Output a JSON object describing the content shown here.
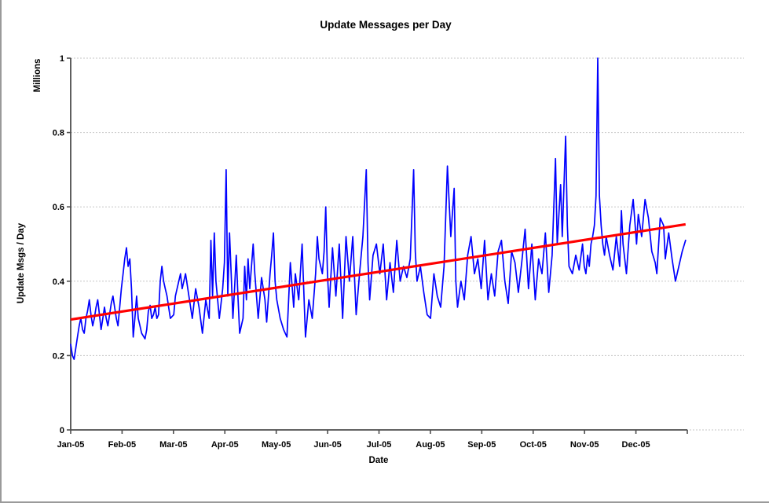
{
  "chart_data": {
    "type": "line",
    "title": "Update Messages per Day",
    "xlabel": "Date",
    "ylabel": "Update Msgs / Day",
    "y_units_label": "Millions",
    "x_tick_labels": [
      "Jan-05",
      "Feb-05",
      "Mar-05",
      "Apr-05",
      "May-05",
      "Jun-05",
      "Jul-05",
      "Aug-05",
      "Sep-05",
      "Oct-05",
      "Nov-05",
      "Dec-05"
    ],
    "y_tick_labels": [
      "0",
      "0.2",
      "0.4",
      "0.6",
      "0.8",
      "1"
    ],
    "y_ticks": [
      0,
      0.2,
      0.4,
      0.6,
      0.8,
      1
    ],
    "ylim": [
      0,
      1
    ],
    "x_days_range": [
      1,
      365
    ],
    "grid": "horizontal-dashed",
    "legend_position": "none",
    "colors": {
      "daily_series": "#0000ff",
      "trend_line": "#ff0000",
      "gridline": "#c6c6c6",
      "axis": "#4d4d4d",
      "background": "#ffffff",
      "frame_edge": "#9a9a9a"
    },
    "series": [
      {
        "name": "daily-update-messages-millions",
        "color": "#0000ff",
        "points": [
          [
            1,
            0.23
          ],
          [
            2,
            0.2
          ],
          [
            3,
            0.19
          ],
          [
            4,
            0.22
          ],
          [
            5,
            0.25
          ],
          [
            6,
            0.28
          ],
          [
            7,
            0.3
          ],
          [
            8,
            0.27
          ],
          [
            9,
            0.26
          ],
          [
            10,
            0.3
          ],
          [
            11,
            0.32
          ],
          [
            12,
            0.35
          ],
          [
            13,
            0.31
          ],
          [
            14,
            0.28
          ],
          [
            15,
            0.3
          ],
          [
            16,
            0.33
          ],
          [
            17,
            0.35
          ],
          [
            18,
            0.31
          ],
          [
            19,
            0.27
          ],
          [
            20,
            0.3
          ],
          [
            21,
            0.33
          ],
          [
            22,
            0.3
          ],
          [
            23,
            0.28
          ],
          [
            24,
            0.31
          ],
          [
            25,
            0.34
          ],
          [
            26,
            0.36
          ],
          [
            27,
            0.33
          ],
          [
            28,
            0.3
          ],
          [
            29,
            0.28
          ],
          [
            30,
            0.33
          ],
          [
            31,
            0.38
          ],
          [
            32,
            0.42
          ],
          [
            33,
            0.46
          ],
          [
            34,
            0.49
          ],
          [
            35,
            0.44
          ],
          [
            36,
            0.46
          ],
          [
            37,
            0.38
          ],
          [
            38,
            0.25
          ],
          [
            39,
            0.3
          ],
          [
            40,
            0.36
          ],
          [
            41,
            0.3
          ],
          [
            42,
            0.28
          ],
          [
            43,
            0.26
          ],
          [
            45,
            0.245
          ],
          [
            46,
            0.27
          ],
          [
            47,
            0.32
          ],
          [
            48,
            0.335
          ],
          [
            49,
            0.3
          ],
          [
            50,
            0.31
          ],
          [
            51,
            0.33
          ],
          [
            52,
            0.3
          ],
          [
            53,
            0.31
          ],
          [
            54,
            0.4
          ],
          [
            55,
            0.44
          ],
          [
            56,
            0.4
          ],
          [
            57,
            0.38
          ],
          [
            58,
            0.36
          ],
          [
            59,
            0.33
          ],
          [
            60,
            0.3
          ],
          [
            62,
            0.31
          ],
          [
            63,
            0.36
          ],
          [
            65,
            0.4
          ],
          [
            66,
            0.42
          ],
          [
            67,
            0.38
          ],
          [
            69,
            0.42
          ],
          [
            71,
            0.36
          ],
          [
            73,
            0.3
          ],
          [
            75,
            0.38
          ],
          [
            77,
            0.33
          ],
          [
            79,
            0.26
          ],
          [
            81,
            0.35
          ],
          [
            83,
            0.3
          ],
          [
            84,
            0.51
          ],
          [
            85,
            0.36
          ],
          [
            86,
            0.53
          ],
          [
            87,
            0.4
          ],
          [
            88,
            0.35
          ],
          [
            89,
            0.3
          ],
          [
            90,
            0.34
          ],
          [
            91,
            0.38
          ],
          [
            92,
            0.45
          ],
          [
            93,
            0.7
          ],
          [
            94,
            0.36
          ],
          [
            95,
            0.53
          ],
          [
            96,
            0.42
          ],
          [
            97,
            0.3
          ],
          [
            98,
            0.38
          ],
          [
            99,
            0.47
          ],
          [
            100,
            0.36
          ],
          [
            101,
            0.26
          ],
          [
            103,
            0.3
          ],
          [
            104,
            0.44
          ],
          [
            105,
            0.35
          ],
          [
            106,
            0.46
          ],
          [
            107,
            0.38
          ],
          [
            109,
            0.5
          ],
          [
            110,
            0.42
          ],
          [
            112,
            0.3
          ],
          [
            114,
            0.41
          ],
          [
            116,
            0.35
          ],
          [
            117,
            0.29
          ],
          [
            119,
            0.42
          ],
          [
            120,
            0.47
          ],
          [
            121,
            0.53
          ],
          [
            122,
            0.4
          ],
          [
            123,
            0.35
          ],
          [
            125,
            0.3
          ],
          [
            127,
            0.27
          ],
          [
            129,
            0.25
          ],
          [
            131,
            0.45
          ],
          [
            133,
            0.33
          ],
          [
            134,
            0.42
          ],
          [
            136,
            0.35
          ],
          [
            138,
            0.5
          ],
          [
            140,
            0.25
          ],
          [
            142,
            0.35
          ],
          [
            144,
            0.3
          ],
          [
            146,
            0.42
          ],
          [
            147,
            0.52
          ],
          [
            148,
            0.46
          ],
          [
            150,
            0.42
          ],
          [
            151,
            0.48
          ],
          [
            152,
            0.6
          ],
          [
            153,
            0.42
          ],
          [
            154,
            0.33
          ],
          [
            156,
            0.49
          ],
          [
            158,
            0.36
          ],
          [
            160,
            0.5
          ],
          [
            162,
            0.3
          ],
          [
            164,
            0.52
          ],
          [
            166,
            0.4
          ],
          [
            168,
            0.52
          ],
          [
            170,
            0.31
          ],
          [
            172,
            0.42
          ],
          [
            174,
            0.52
          ],
          [
            176,
            0.7
          ],
          [
            177,
            0.45
          ],
          [
            178,
            0.35
          ],
          [
            180,
            0.47
          ],
          [
            182,
            0.5
          ],
          [
            184,
            0.42
          ],
          [
            186,
            0.5
          ],
          [
            188,
            0.35
          ],
          [
            190,
            0.45
          ],
          [
            192,
            0.37
          ],
          [
            194,
            0.51
          ],
          [
            196,
            0.4
          ],
          [
            198,
            0.44
          ],
          [
            200,
            0.41
          ],
          [
            202,
            0.46
          ],
          [
            204,
            0.7
          ],
          [
            205,
            0.48
          ],
          [
            206,
            0.4
          ],
          [
            208,
            0.44
          ],
          [
            210,
            0.37
          ],
          [
            212,
            0.31
          ],
          [
            214,
            0.3
          ],
          [
            216,
            0.42
          ],
          [
            218,
            0.36
          ],
          [
            220,
            0.33
          ],
          [
            222,
            0.44
          ],
          [
            224,
            0.71
          ],
          [
            226,
            0.52
          ],
          [
            228,
            0.65
          ],
          [
            229,
            0.4
          ],
          [
            230,
            0.33
          ],
          [
            232,
            0.4
          ],
          [
            234,
            0.35
          ],
          [
            236,
            0.47
          ],
          [
            238,
            0.52
          ],
          [
            240,
            0.42
          ],
          [
            242,
            0.46
          ],
          [
            244,
            0.38
          ],
          [
            246,
            0.51
          ],
          [
            248,
            0.35
          ],
          [
            250,
            0.42
          ],
          [
            252,
            0.36
          ],
          [
            254,
            0.48
          ],
          [
            256,
            0.51
          ],
          [
            258,
            0.4
          ],
          [
            260,
            0.34
          ],
          [
            262,
            0.48
          ],
          [
            264,
            0.45
          ],
          [
            266,
            0.37
          ],
          [
            268,
            0.45
          ],
          [
            270,
            0.54
          ],
          [
            272,
            0.38
          ],
          [
            274,
            0.5
          ],
          [
            276,
            0.35
          ],
          [
            278,
            0.46
          ],
          [
            280,
            0.42
          ],
          [
            282,
            0.53
          ],
          [
            284,
            0.37
          ],
          [
            286,
            0.47
          ],
          [
            288,
            0.73
          ],
          [
            289,
            0.5
          ],
          [
            291,
            0.66
          ],
          [
            292,
            0.52
          ],
          [
            294,
            0.79
          ],
          [
            295,
            0.55
          ],
          [
            296,
            0.44
          ],
          [
            298,
            0.42
          ],
          [
            300,
            0.47
          ],
          [
            302,
            0.43
          ],
          [
            304,
            0.5
          ],
          [
            305,
            0.44
          ],
          [
            306,
            0.42
          ],
          [
            307,
            0.47
          ],
          [
            308,
            0.44
          ],
          [
            309,
            0.5
          ],
          [
            310,
            0.52
          ],
          [
            311,
            0.55
          ],
          [
            312,
            0.63
          ],
          [
            313,
            1.0
          ],
          [
            314,
            0.63
          ],
          [
            315,
            0.55
          ],
          [
            316,
            0.5
          ],
          [
            317,
            0.47
          ],
          [
            318,
            0.52
          ],
          [
            320,
            0.47
          ],
          [
            322,
            0.43
          ],
          [
            324,
            0.52
          ],
          [
            326,
            0.44
          ],
          [
            327,
            0.59
          ],
          [
            328,
            0.5
          ],
          [
            330,
            0.42
          ],
          [
            332,
            0.55
          ],
          [
            334,
            0.62
          ],
          [
            336,
            0.5
          ],
          [
            337,
            0.58
          ],
          [
            339,
            0.52
          ],
          [
            341,
            0.62
          ],
          [
            343,
            0.57
          ],
          [
            345,
            0.48
          ],
          [
            347,
            0.45
          ],
          [
            348,
            0.42
          ],
          [
            350,
            0.57
          ],
          [
            352,
            0.55
          ],
          [
            353,
            0.46
          ],
          [
            355,
            0.53
          ],
          [
            357,
            0.46
          ],
          [
            359,
            0.4
          ],
          [
            361,
            0.44
          ],
          [
            363,
            0.48
          ],
          [
            365,
            0.51
          ]
        ]
      },
      {
        "name": "linear-trend",
        "color": "#ff0000",
        "points": [
          [
            1,
            0.297
          ],
          [
            365,
            0.553
          ]
        ]
      }
    ]
  }
}
